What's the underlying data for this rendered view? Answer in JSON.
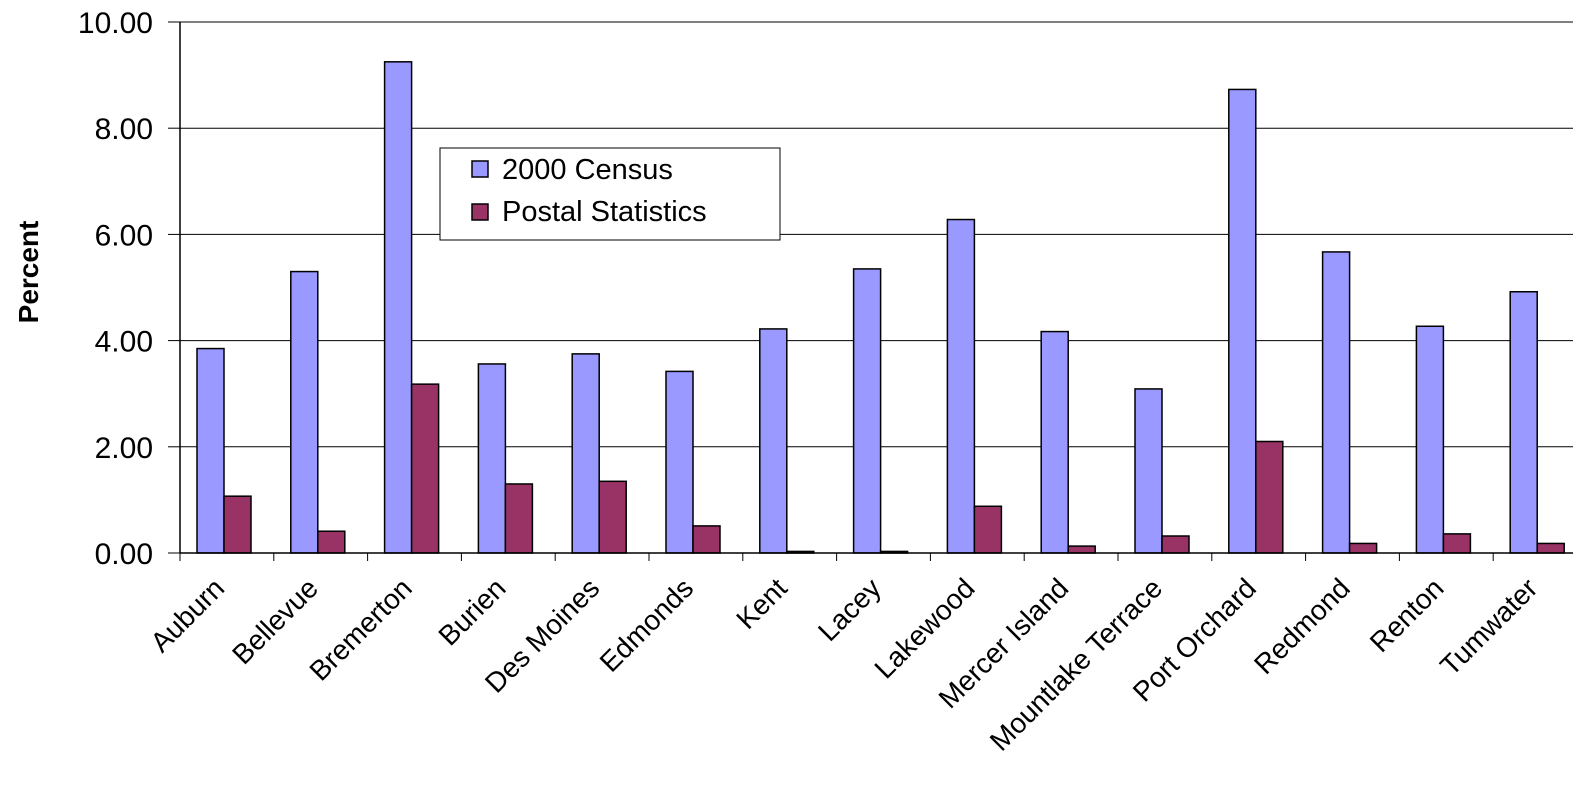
{
  "chart_data": {
    "type": "bar",
    "categories": [
      "Auburn",
      "Bellevue",
      "Bremerton",
      "Burien",
      "Des Moines",
      "Edmonds",
      "Kent",
      "Lacey",
      "Lakewood",
      "Mercer Island",
      "Mountlake Terrace",
      "Port Orchard",
      "Redmond",
      "Renton",
      "Tumwater"
    ],
    "series": [
      {
        "name": "2000 Census",
        "color": "#9999ff",
        "values": [
          3.85,
          5.3,
          9.25,
          3.56,
          3.75,
          3.42,
          4.22,
          5.35,
          6.28,
          4.17,
          3.09,
          8.73,
          5.67,
          4.27,
          4.92
        ]
      },
      {
        "name": "Postal Statistics",
        "color": "#993366",
        "values": [
          1.07,
          0.41,
          3.18,
          1.3,
          1.35,
          0.51,
          0.03,
          0.03,
          0.88,
          0.13,
          0.32,
          2.1,
          0.18,
          0.36,
          0.18
        ]
      }
    ],
    "title": "",
    "xlabel": "",
    "ylabel": "Percent",
    "ylim": [
      0,
      10
    ],
    "yticks": [
      "0.00",
      "2.00",
      "4.00",
      "6.00",
      "8.00",
      "10.00"
    ],
    "grid": true,
    "legend_position": "top-left"
  }
}
